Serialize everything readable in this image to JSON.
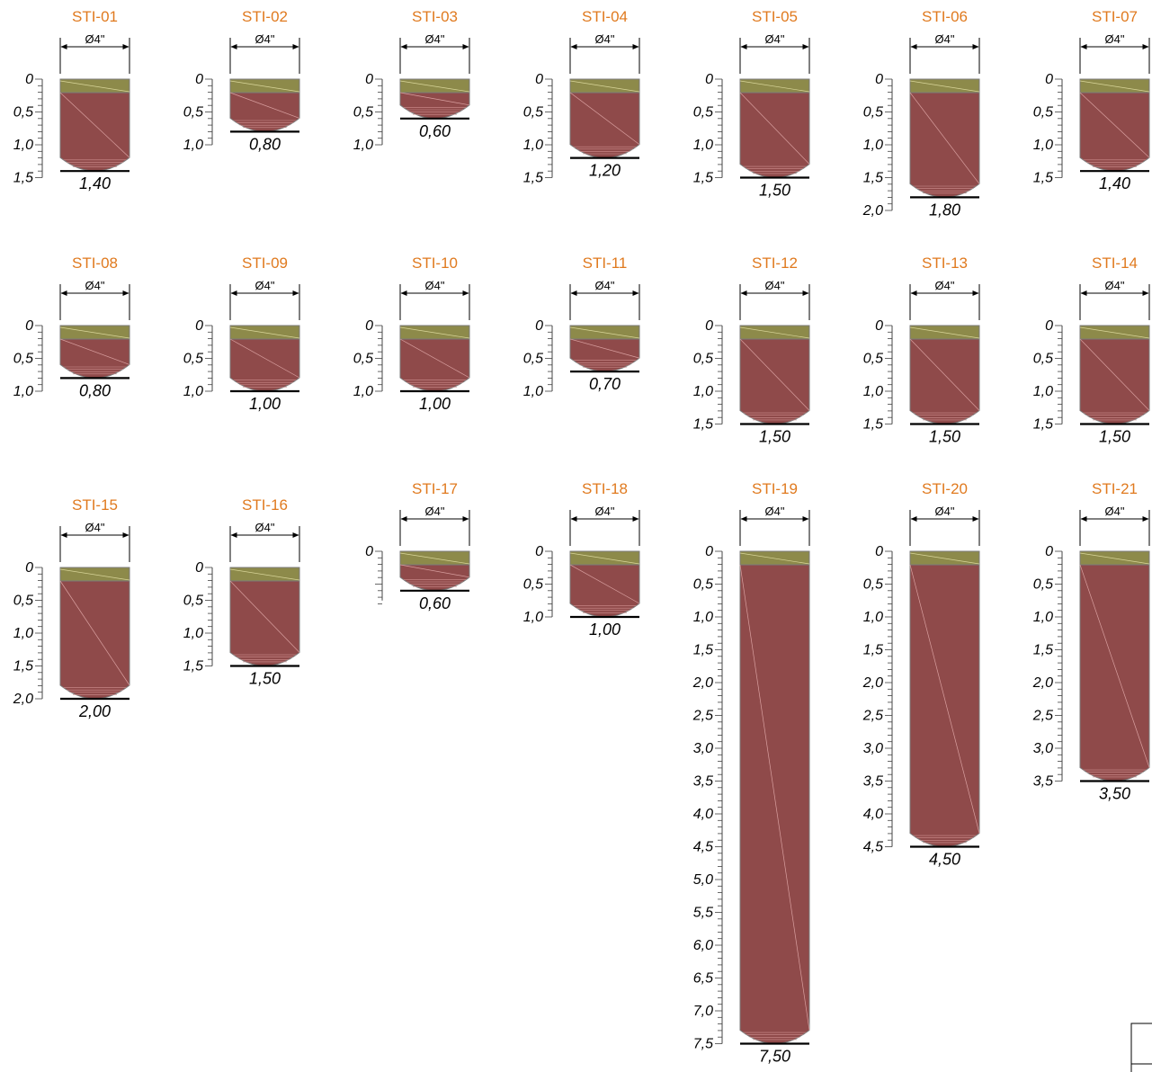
{
  "drawing": {
    "diameter_label": "Ø4\"",
    "colors": {
      "topsoil": "#8D8A4A",
      "soil": "#8F4A4A",
      "id_text": "#E07A1F",
      "outline": "#7A7A7A"
    },
    "boreholes": [
      {
        "id": "STI-01",
        "depth": 1.4,
        "depth_label": "1,40",
        "scale_labels": [
          "0",
          "0,5",
          "1,0",
          "1,5"
        ]
      },
      {
        "id": "STI-02",
        "depth": 0.8,
        "depth_label": "0,80",
        "scale_labels": [
          "0",
          "0,5",
          "1,0"
        ]
      },
      {
        "id": "STI-03",
        "depth": 0.6,
        "depth_label": "0,60",
        "scale_labels": [
          "0",
          "0,5",
          "1,0"
        ]
      },
      {
        "id": "STI-04",
        "depth": 1.2,
        "depth_label": "1,20",
        "scale_labels": [
          "0",
          "0,5",
          "1,0",
          "1,5"
        ]
      },
      {
        "id": "STI-05",
        "depth": 1.5,
        "depth_label": "1,50",
        "scale_labels": [
          "0",
          "0,5",
          "1,0",
          "1,5"
        ]
      },
      {
        "id": "STI-06",
        "depth": 1.8,
        "depth_label": "1,80",
        "scale_labels": [
          "0",
          "0,5",
          "1,0",
          "1,5",
          "2,0"
        ]
      },
      {
        "id": "STI-07",
        "depth": 1.4,
        "depth_label": "1,40",
        "scale_labels": [
          "0",
          "0,5",
          "1,0",
          "1,5"
        ]
      },
      {
        "id": "STI-08",
        "depth": 0.8,
        "depth_label": "0,80",
        "scale_labels": [
          "0",
          "0,5",
          "1,0"
        ]
      },
      {
        "id": "STI-09",
        "depth": 1.0,
        "depth_label": "1,00",
        "scale_labels": [
          "0",
          "0,5",
          "1,0"
        ]
      },
      {
        "id": "STI-10",
        "depth": 1.0,
        "depth_label": "1,00",
        "scale_labels": [
          "0",
          "0,5",
          "1,0"
        ]
      },
      {
        "id": "STI-11",
        "depth": 0.7,
        "depth_label": "0,70",
        "scale_labels": [
          "0",
          "0,5",
          "1,0"
        ]
      },
      {
        "id": "STI-12",
        "depth": 1.5,
        "depth_label": "1,50",
        "scale_labels": [
          "0",
          "0,5",
          "1,0",
          "1,5"
        ]
      },
      {
        "id": "STI-13",
        "depth": 1.5,
        "depth_label": "1,50",
        "scale_labels": [
          "0",
          "0,5",
          "1,0",
          "1,5"
        ]
      },
      {
        "id": "STI-14",
        "depth": 1.5,
        "depth_label": "1,50",
        "scale_labels": [
          "0",
          "0,5",
          "1,0",
          "1,5"
        ]
      },
      {
        "id": "STI-15",
        "depth": 2.0,
        "depth_label": "2,00",
        "scale_labels": [
          "0",
          "0,5",
          "1,0",
          "1,5",
          "2,0"
        ]
      },
      {
        "id": "STI-16",
        "depth": 1.5,
        "depth_label": "1,50",
        "scale_labels": [
          "0",
          "0,5",
          "1,0",
          "1,5"
        ]
      },
      {
        "id": "STI-17",
        "depth": 0.6,
        "depth_label": "0,60",
        "scale_labels": [
          "0"
        ]
      },
      {
        "id": "STI-18",
        "depth": 1.0,
        "depth_label": "1,00",
        "scale_labels": [
          "0",
          "0,5",
          "1,0"
        ]
      },
      {
        "id": "STI-19",
        "depth": 7.5,
        "depth_label": "7,50",
        "scale_labels": [
          "0",
          "0,5",
          "1,0",
          "1,5",
          "2,0",
          "2,5",
          "3,0",
          "3,5",
          "4,0",
          "4,5",
          "5,0",
          "5,5",
          "6,0",
          "6,5",
          "7,0",
          "7,5"
        ]
      },
      {
        "id": "STI-20",
        "depth": 4.5,
        "depth_label": "4,50",
        "scale_labels": [
          "0",
          "0,5",
          "1,0",
          "1,5",
          "2,0",
          "2,5",
          "3,0",
          "3,5",
          "4,0",
          "4,5"
        ]
      },
      {
        "id": "STI-21",
        "depth": 3.5,
        "depth_label": "3,50",
        "scale_labels": [
          "0",
          "0,5",
          "1,0",
          "1,5",
          "2,0",
          "2,5",
          "3,0",
          "3,5"
        ]
      }
    ]
  }
}
